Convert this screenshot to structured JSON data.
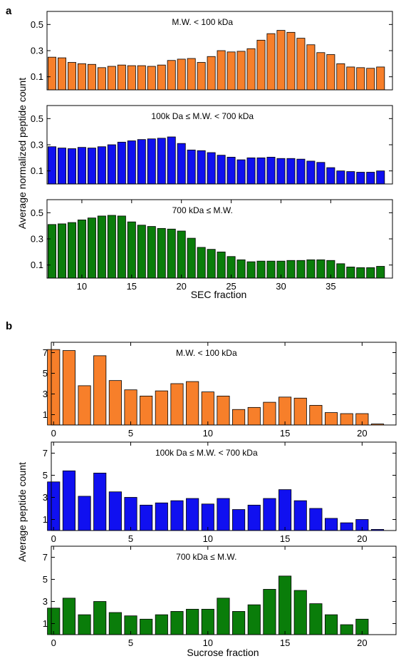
{
  "panels": [
    {
      "letter": "a",
      "ylabel": "Average normalized peptide count",
      "xlabel": "SEC fraction"
    },
    {
      "letter": "b",
      "ylabel": "Average peptide count",
      "xlabel": "Sucrose fraction"
    }
  ],
  "colors": {
    "orange": "#f77f2a",
    "blue": "#1010f0",
    "green": "#0a7d0a"
  },
  "chart_data": [
    {
      "type": "bar",
      "panel": "a",
      "title": "M.W. < 100 kDa",
      "color": "orange",
      "x": [
        7,
        8,
        9,
        10,
        11,
        12,
        13,
        14,
        15,
        16,
        17,
        18,
        19,
        20,
        21,
        22,
        23,
        24,
        25,
        26,
        27,
        28,
        29,
        30,
        31,
        32,
        33,
        34,
        35,
        36,
        37,
        38,
        39,
        40
      ],
      "values": [
        0.25,
        0.245,
        0.21,
        0.2,
        0.195,
        0.17,
        0.18,
        0.19,
        0.185,
        0.185,
        0.18,
        0.19,
        0.225,
        0.235,
        0.24,
        0.21,
        0.255,
        0.3,
        0.29,
        0.295,
        0.315,
        0.38,
        0.43,
        0.455,
        0.44,
        0.395,
        0.345,
        0.285,
        0.27,
        0.2,
        0.175,
        0.17,
        0.165,
        0.175
      ],
      "xlim": [
        6.5,
        41.2
      ],
      "ylim": [
        0.0,
        0.6
      ],
      "yticks": [
        0.1,
        0.3,
        0.5
      ],
      "ytick_labels": [
        "0.1",
        "0.3",
        "0.5"
      ],
      "xticks": [],
      "xtick_labels": [],
      "grid": false
    },
    {
      "type": "bar",
      "panel": "a",
      "title": "100k Da ≤ M.W. < 700 kDa",
      "color": "blue",
      "x": [
        7,
        8,
        9,
        10,
        11,
        12,
        13,
        14,
        15,
        16,
        17,
        18,
        19,
        20,
        21,
        22,
        23,
        24,
        25,
        26,
        27,
        28,
        29,
        30,
        31,
        32,
        33,
        34,
        35,
        36,
        37,
        38,
        39,
        40
      ],
      "values": [
        0.285,
        0.275,
        0.27,
        0.28,
        0.275,
        0.285,
        0.3,
        0.32,
        0.33,
        0.34,
        0.345,
        0.35,
        0.36,
        0.31,
        0.26,
        0.255,
        0.24,
        0.22,
        0.205,
        0.185,
        0.2,
        0.2,
        0.205,
        0.195,
        0.195,
        0.19,
        0.175,
        0.165,
        0.125,
        0.1,
        0.095,
        0.09,
        0.09,
        0.1
      ],
      "xlim": [
        6.5,
        41.2
      ],
      "ylim": [
        0.0,
        0.6
      ],
      "yticks": [
        0.1,
        0.3,
        0.5
      ],
      "ytick_labels": [
        "0.1",
        "0.3",
        "0.5"
      ],
      "xticks": [],
      "xtick_labels": [],
      "grid": false
    },
    {
      "type": "bar",
      "panel": "a",
      "title": "700 kDa ≤ M.W.",
      "color": "green",
      "x": [
        7,
        8,
        9,
        10,
        11,
        12,
        13,
        14,
        15,
        16,
        17,
        18,
        19,
        20,
        21,
        22,
        23,
        24,
        25,
        26,
        27,
        28,
        29,
        30,
        31,
        32,
        33,
        34,
        35,
        36,
        37,
        38,
        39,
        40
      ],
      "values": [
        0.41,
        0.415,
        0.425,
        0.445,
        0.46,
        0.475,
        0.48,
        0.475,
        0.43,
        0.405,
        0.395,
        0.38,
        0.375,
        0.36,
        0.305,
        0.235,
        0.22,
        0.2,
        0.165,
        0.14,
        0.125,
        0.13,
        0.13,
        0.13,
        0.135,
        0.135,
        0.14,
        0.14,
        0.135,
        0.11,
        0.085,
        0.08,
        0.08,
        0.09
      ],
      "xlim": [
        6.5,
        41.2
      ],
      "ylim": [
        0.0,
        0.6
      ],
      "yticks": [
        0.1,
        0.3,
        0.5
      ],
      "ytick_labels": [
        "0.1",
        "0.3",
        "0.5"
      ],
      "xticks": [
        10,
        15,
        20,
        25,
        30,
        35
      ],
      "xtick_labels": [
        "10",
        "15",
        "20",
        "25",
        "30",
        "35"
      ],
      "grid": false
    },
    {
      "type": "bar",
      "panel": "b",
      "title": "M.W. < 100 kDa",
      "color": "orange",
      "x": [
        0,
        1,
        2,
        3,
        4,
        5,
        6,
        7,
        8,
        9,
        10,
        11,
        12,
        13,
        14,
        15,
        16,
        17,
        18,
        19,
        20,
        21
      ],
      "values": [
        7.3,
        7.2,
        3.8,
        6.7,
        4.3,
        3.4,
        2.8,
        3.3,
        4.0,
        4.2,
        3.2,
        2.8,
        1.5,
        1.7,
        2.2,
        2.7,
        2.6,
        1.9,
        1.2,
        1.1,
        1.1,
        0.1
      ],
      "xlim": [
        -0.15,
        22.2
      ],
      "ylim": [
        0,
        8
      ],
      "yticks": [
        1,
        3,
        5,
        7
      ],
      "ytick_labels": [
        "1",
        "3",
        "5",
        "7"
      ],
      "xticks": [
        0,
        5,
        10,
        15,
        20
      ],
      "xtick_labels": [
        "0",
        "5",
        "10",
        "15",
        "20"
      ],
      "grid": false
    },
    {
      "type": "bar",
      "panel": "b",
      "title": "100k Da ≤ M.W. < 700 kDa",
      "color": "blue",
      "x": [
        0,
        1,
        2,
        3,
        4,
        5,
        6,
        7,
        8,
        9,
        10,
        11,
        12,
        13,
        14,
        15,
        16,
        17,
        18,
        19,
        20,
        21
      ],
      "values": [
        4.4,
        5.4,
        3.1,
        5.2,
        3.5,
        3.0,
        2.3,
        2.5,
        2.7,
        2.9,
        2.4,
        2.9,
        1.9,
        2.3,
        2.9,
        3.7,
        2.7,
        2.0,
        1.1,
        0.7,
        1.0,
        0.1
      ],
      "xlim": [
        -0.15,
        22.2
      ],
      "ylim": [
        0,
        8
      ],
      "yticks": [
        1,
        3,
        5,
        7
      ],
      "ytick_labels": [
        "1",
        "3",
        "5",
        "7"
      ],
      "xticks": [
        0,
        5,
        10,
        15,
        20
      ],
      "xtick_labels": [
        "0",
        "5",
        "10",
        "15",
        "20"
      ],
      "grid": false
    },
    {
      "type": "bar",
      "panel": "b",
      "title": "700 kDa ≤ M.W.",
      "color": "green",
      "x": [
        0,
        1,
        2,
        3,
        4,
        5,
        6,
        7,
        8,
        9,
        10,
        11,
        12,
        13,
        14,
        15,
        16,
        17,
        18,
        19,
        20
      ],
      "values": [
        2.4,
        3.3,
        1.8,
        3.0,
        2.0,
        1.7,
        1.4,
        1.8,
        2.1,
        2.3,
        2.3,
        3.3,
        2.1,
        2.7,
        4.1,
        5.3,
        4.0,
        2.8,
        1.8,
        0.9,
        1.4
      ],
      "xlim": [
        -0.15,
        22.2
      ],
      "ylim": [
        0,
        8
      ],
      "yticks": [
        1,
        3,
        5,
        7
      ],
      "ytick_labels": [
        "1",
        "3",
        "5",
        "7"
      ],
      "xticks": [
        0,
        5,
        10,
        15,
        20
      ],
      "xtick_labels": [
        "0",
        "5",
        "10",
        "15",
        "20"
      ],
      "grid": false
    }
  ]
}
